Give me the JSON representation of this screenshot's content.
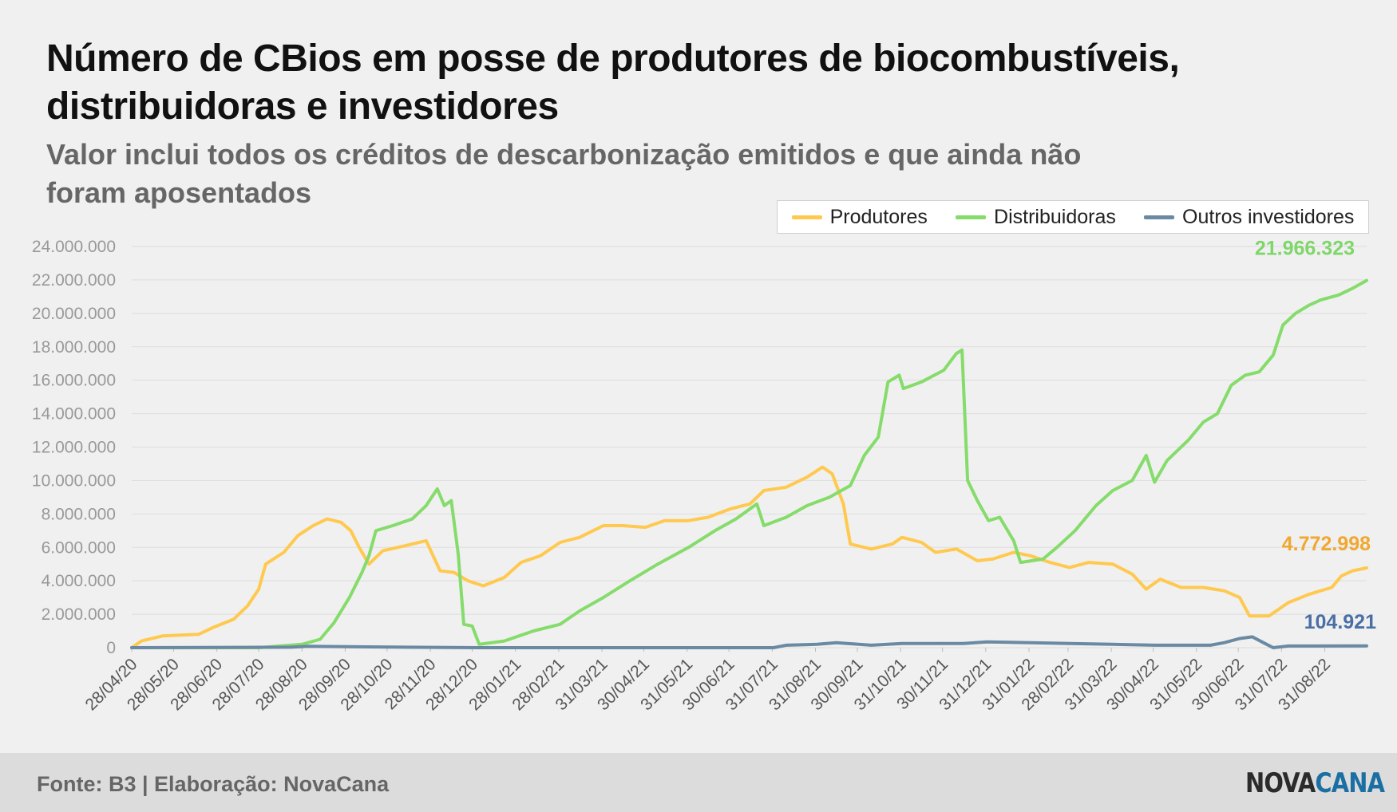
{
  "header": {
    "title": "Número de CBios em posse de produtores de biocombustíveis, distribuidoras e investidores",
    "subtitle": "Valor inclui todos os créditos de descarbonização emitidos e que ainda não foram aposentados"
  },
  "footer": {
    "source": "Fonte: B3 | Elaboração: NovaCana",
    "logo_part1": "NOVA",
    "logo_part2": "CANA"
  },
  "colors": {
    "produtores": "#ffc94f",
    "distribuidoras": "#85dc6b",
    "investidores": "#6a8aa3",
    "grid": "#dddddd",
    "axis_text": "#999999"
  },
  "legend": [
    {
      "name": "Produtores",
      "color": "#ffc94f"
    },
    {
      "name": "Distribuidoras",
      "color": "#85dc6b"
    },
    {
      "name": "Outros investidores",
      "color": "#6a8aa3"
    }
  ],
  "chart_data": {
    "type": "line",
    "title": "Número de CBios em posse de produtores de biocombustíveis, distribuidoras e investidores",
    "xlabel": "",
    "ylabel": "",
    "ylim": [
      0,
      24000000
    ],
    "yticks": [
      0,
      2000000,
      4000000,
      6000000,
      8000000,
      10000000,
      12000000,
      14000000,
      16000000,
      18000000,
      20000000,
      22000000,
      24000000
    ],
    "ytick_labels": [
      "0",
      "2.000.000",
      "4.000.000",
      "6.000.000",
      "8.000.000",
      "10.000.000",
      "12.000.000",
      "14.000.000",
      "16.000.000",
      "18.000.000",
      "20.000.000",
      "22.000.000",
      "24.000.000"
    ],
    "xlim": [
      "2020-04-28",
      "2022-09-30"
    ],
    "xticks": [
      "2020-04-28",
      "2020-05-28",
      "2020-06-28",
      "2020-07-28",
      "2020-08-28",
      "2020-09-28",
      "2020-10-28",
      "2020-11-28",
      "2020-12-28",
      "2021-01-28",
      "2021-02-28",
      "2021-03-31",
      "2021-04-30",
      "2021-05-31",
      "2021-06-30",
      "2021-07-31",
      "2021-08-31",
      "2021-09-30",
      "2021-10-31",
      "2021-11-30",
      "2021-12-31",
      "2022-01-31",
      "2022-02-28",
      "2022-03-31",
      "2022-04-30",
      "2022-05-31",
      "2022-06-30",
      "2022-07-31",
      "2022-08-31"
    ],
    "xtick_labels": [
      "28/04/20",
      "28/05/20",
      "28/06/20",
      "28/07/20",
      "28/08/20",
      "28/09/20",
      "28/10/20",
      "28/11/20",
      "28/12/20",
      "28/01/21",
      "28/02/21",
      "31/03/21",
      "30/04/21",
      "31/05/21",
      "30/06/21",
      "31/07/21",
      "31/08/21",
      "30/09/21",
      "31/10/21",
      "30/11/21",
      "31/12/21",
      "31/01/22",
      "28/02/22",
      "31/03/22",
      "30/04/22",
      "31/05/22",
      "30/06/22",
      "31/07/22",
      "31/08/22"
    ],
    "grid": true,
    "legend_position": "top-right",
    "series": [
      {
        "name": "Produtores",
        "color": "#ffc94f",
        "end_label": "4.772.998",
        "points": [
          [
            "2020-04-28",
            0
          ],
          [
            "2020-05-05",
            400000
          ],
          [
            "2020-05-20",
            700000
          ],
          [
            "2020-06-15",
            800000
          ],
          [
            "2020-06-25",
            1200000
          ],
          [
            "2020-07-10",
            1700000
          ],
          [
            "2020-07-20",
            2500000
          ],
          [
            "2020-07-28",
            3500000
          ],
          [
            "2020-08-02",
            5000000
          ],
          [
            "2020-08-15",
            5700000
          ],
          [
            "2020-08-25",
            6700000
          ],
          [
            "2020-09-05",
            7300000
          ],
          [
            "2020-09-15",
            7700000
          ],
          [
            "2020-09-25",
            7500000
          ],
          [
            "2020-10-02",
            7000000
          ],
          [
            "2020-10-08",
            6000000
          ],
          [
            "2020-10-15",
            5000000
          ],
          [
            "2020-10-25",
            5800000
          ],
          [
            "2020-11-10",
            6100000
          ],
          [
            "2020-11-25",
            6400000
          ],
          [
            "2020-12-05",
            4600000
          ],
          [
            "2020-12-15",
            4500000
          ],
          [
            "2020-12-25",
            4000000
          ],
          [
            "2021-01-05",
            3700000
          ],
          [
            "2021-01-20",
            4200000
          ],
          [
            "2021-02-01",
            5100000
          ],
          [
            "2021-02-15",
            5500000
          ],
          [
            "2021-03-01",
            6300000
          ],
          [
            "2021-03-15",
            6600000
          ],
          [
            "2021-04-01",
            7300000
          ],
          [
            "2021-04-15",
            7300000
          ],
          [
            "2021-05-01",
            7200000
          ],
          [
            "2021-05-15",
            7600000
          ],
          [
            "2021-06-01",
            7600000
          ],
          [
            "2021-06-15",
            7800000
          ],
          [
            "2021-07-01",
            8300000
          ],
          [
            "2021-07-15",
            8600000
          ],
          [
            "2021-07-25",
            9400000
          ],
          [
            "2021-08-10",
            9600000
          ],
          [
            "2021-08-25",
            10200000
          ],
          [
            "2021-09-05",
            10800000
          ],
          [
            "2021-09-12",
            10400000
          ],
          [
            "2021-09-20",
            8600000
          ],
          [
            "2021-09-25",
            6200000
          ],
          [
            "2021-10-10",
            5900000
          ],
          [
            "2021-10-25",
            6200000
          ],
          [
            "2021-11-01",
            6600000
          ],
          [
            "2021-11-15",
            6300000
          ],
          [
            "2021-11-25",
            5700000
          ],
          [
            "2021-12-10",
            5900000
          ],
          [
            "2021-12-25",
            5200000
          ],
          [
            "2022-01-05",
            5300000
          ],
          [
            "2022-01-20",
            5700000
          ],
          [
            "2022-02-01",
            5500000
          ],
          [
            "2022-02-15",
            5100000
          ],
          [
            "2022-03-01",
            4800000
          ],
          [
            "2022-03-15",
            5100000
          ],
          [
            "2022-04-01",
            5000000
          ],
          [
            "2022-04-15",
            4400000
          ],
          [
            "2022-04-25",
            3500000
          ],
          [
            "2022-05-05",
            4100000
          ],
          [
            "2022-05-20",
            3600000
          ],
          [
            "2022-06-05",
            3600000
          ],
          [
            "2022-06-20",
            3400000
          ],
          [
            "2022-07-01",
            3000000
          ],
          [
            "2022-07-08",
            1900000
          ],
          [
            "2022-07-22",
            1900000
          ],
          [
            "2022-08-05",
            2700000
          ],
          [
            "2022-08-20",
            3200000
          ],
          [
            "2022-09-05",
            3600000
          ],
          [
            "2022-09-12",
            4300000
          ],
          [
            "2022-09-20",
            4600000
          ],
          [
            "2022-09-30",
            4772998
          ]
        ]
      },
      {
        "name": "Distribuidoras",
        "color": "#85dc6b",
        "end_label": "21.966.323",
        "points": [
          [
            "2020-04-28",
            0
          ],
          [
            "2020-07-28",
            0
          ],
          [
            "2020-08-28",
            200000
          ],
          [
            "2020-09-10",
            500000
          ],
          [
            "2020-09-20",
            1500000
          ],
          [
            "2020-10-01",
            3000000
          ],
          [
            "2020-10-10",
            4500000
          ],
          [
            "2020-10-15",
            5500000
          ],
          [
            "2020-10-20",
            7000000
          ],
          [
            "2020-11-01",
            7300000
          ],
          [
            "2020-11-15",
            7700000
          ],
          [
            "2020-11-25",
            8500000
          ],
          [
            "2020-12-03",
            9500000
          ],
          [
            "2020-12-08",
            8500000
          ],
          [
            "2020-12-13",
            8800000
          ],
          [
            "2020-12-18",
            5600000
          ],
          [
            "2020-12-22",
            1400000
          ],
          [
            "2020-12-28",
            1300000
          ],
          [
            "2021-01-02",
            200000
          ],
          [
            "2021-01-20",
            400000
          ],
          [
            "2021-02-10",
            1000000
          ],
          [
            "2021-03-01",
            1400000
          ],
          [
            "2021-03-15",
            2200000
          ],
          [
            "2021-04-01",
            3000000
          ],
          [
            "2021-04-20",
            4000000
          ],
          [
            "2021-05-10",
            5000000
          ],
          [
            "2021-06-01",
            6000000
          ],
          [
            "2021-06-20",
            7000000
          ],
          [
            "2021-07-05",
            7700000
          ],
          [
            "2021-07-20",
            8600000
          ],
          [
            "2021-07-25",
            7300000
          ],
          [
            "2021-08-10",
            7800000
          ],
          [
            "2021-08-25",
            8500000
          ],
          [
            "2021-09-10",
            9000000
          ],
          [
            "2021-09-25",
            9700000
          ],
          [
            "2021-10-05",
            11500000
          ],
          [
            "2021-10-15",
            12600000
          ],
          [
            "2021-10-22",
            15900000
          ],
          [
            "2021-10-30",
            16300000
          ],
          [
            "2021-11-02",
            15500000
          ],
          [
            "2021-11-15",
            15900000
          ],
          [
            "2021-12-01",
            16600000
          ],
          [
            "2021-12-10",
            17600000
          ],
          [
            "2021-12-14",
            17800000
          ],
          [
            "2021-12-18",
            10000000
          ],
          [
            "2021-12-25",
            8800000
          ],
          [
            "2022-01-02",
            7600000
          ],
          [
            "2022-01-10",
            7800000
          ],
          [
            "2022-01-20",
            6400000
          ],
          [
            "2022-01-25",
            5100000
          ],
          [
            "2022-02-10",
            5300000
          ],
          [
            "2022-02-20",
            6000000
          ],
          [
            "2022-03-05",
            7000000
          ],
          [
            "2022-03-20",
            8500000
          ],
          [
            "2022-04-01",
            9400000
          ],
          [
            "2022-04-15",
            10000000
          ],
          [
            "2022-04-25",
            11500000
          ],
          [
            "2022-05-01",
            9900000
          ],
          [
            "2022-05-10",
            11200000
          ],
          [
            "2022-05-25",
            12400000
          ],
          [
            "2022-06-05",
            13500000
          ],
          [
            "2022-06-15",
            14000000
          ],
          [
            "2022-06-25",
            15700000
          ],
          [
            "2022-07-05",
            16300000
          ],
          [
            "2022-07-15",
            16500000
          ],
          [
            "2022-07-25",
            17500000
          ],
          [
            "2022-08-01",
            19300000
          ],
          [
            "2022-08-10",
            20000000
          ],
          [
            "2022-08-20",
            20500000
          ],
          [
            "2022-08-28",
            20800000
          ],
          [
            "2022-09-10",
            21100000
          ],
          [
            "2022-09-20",
            21500000
          ],
          [
            "2022-09-30",
            21966323
          ]
        ]
      },
      {
        "name": "Outros investidores",
        "color": "#6a8aa3",
        "end_label": "104.921",
        "points": [
          [
            "2020-04-28",
            0
          ],
          [
            "2020-08-20",
            30000
          ],
          [
            "2020-09-01",
            80000
          ],
          [
            "2020-10-15",
            50000
          ],
          [
            "2021-01-01",
            0
          ],
          [
            "2021-08-01",
            0
          ],
          [
            "2021-08-10",
            150000
          ],
          [
            "2021-09-01",
            200000
          ],
          [
            "2021-09-15",
            300000
          ],
          [
            "2021-10-10",
            150000
          ],
          [
            "2021-11-01",
            250000
          ],
          [
            "2021-12-15",
            250000
          ],
          [
            "2022-01-01",
            350000
          ],
          [
            "2022-02-01",
            300000
          ],
          [
            "2022-03-01",
            250000
          ],
          [
            "2022-04-01",
            200000
          ],
          [
            "2022-05-01",
            150000
          ],
          [
            "2022-06-10",
            150000
          ],
          [
            "2022-06-20",
            300000
          ],
          [
            "2022-07-01",
            550000
          ],
          [
            "2022-07-10",
            650000
          ],
          [
            "2022-07-18",
            300000
          ],
          [
            "2022-07-25",
            0
          ],
          [
            "2022-08-05",
            100000
          ],
          [
            "2022-09-30",
            104921
          ]
        ]
      }
    ]
  }
}
